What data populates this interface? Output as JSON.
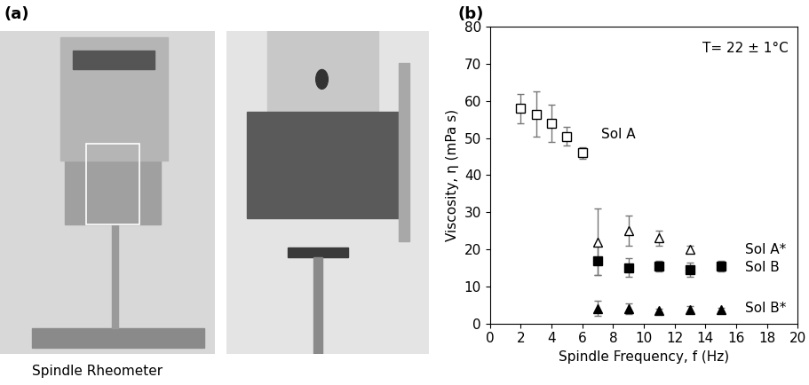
{
  "panel_labels": [
    "(a)",
    "(b)"
  ],
  "photo_caption": "Spindle Rheometer",
  "chart_data": {
    "type": "scatter",
    "x_label": "Spindle Frequency, f (Hz)",
    "y_label": "Viscosity, η (mPa s)",
    "annotations": [
      "T= 22 ± 1°C"
    ],
    "xlim": [
      0,
      20
    ],
    "xticks": [
      0,
      2,
      4,
      6,
      8,
      10,
      12,
      14,
      16,
      18,
      20
    ],
    "ylim": [
      0,
      80
    ],
    "yticks": [
      0,
      10,
      20,
      30,
      40,
      50,
      60,
      70,
      80
    ],
    "grid": false,
    "series": [
      {
        "name": "Sol A",
        "color": "#000000",
        "marker": "open_square",
        "x": [
          2,
          3,
          4,
          5,
          6
        ],
        "values": [
          58,
          56.5,
          54,
          50.5,
          46
        ],
        "error": [
          4,
          6,
          5,
          2.5,
          1.5
        ]
      },
      {
        "name": "Sol A*",
        "color": "#000000",
        "marker": "open_triangle",
        "x": [
          7,
          9,
          11,
          13
        ],
        "values": [
          22,
          25,
          23,
          20
        ],
        "error": [
          9,
          4,
          2,
          1
        ]
      },
      {
        "name": "Sol B",
        "color": "#000000",
        "marker": "square",
        "x": [
          7,
          9,
          11,
          13,
          15
        ],
        "values": [
          17,
          15,
          15.5,
          14.5,
          15.5
        ],
        "error": [
          4,
          2.5,
          1.5,
          2,
          1.5
        ]
      },
      {
        "name": "Sol B*",
        "color": "#000000",
        "marker": "triangle",
        "x": [
          7,
          9,
          11,
          13,
          15
        ],
        "values": [
          4,
          4,
          3.5,
          3.8,
          3.8
        ],
        "error": [
          2,
          1.5,
          0.5,
          0.8,
          0.5
        ]
      }
    ]
  }
}
